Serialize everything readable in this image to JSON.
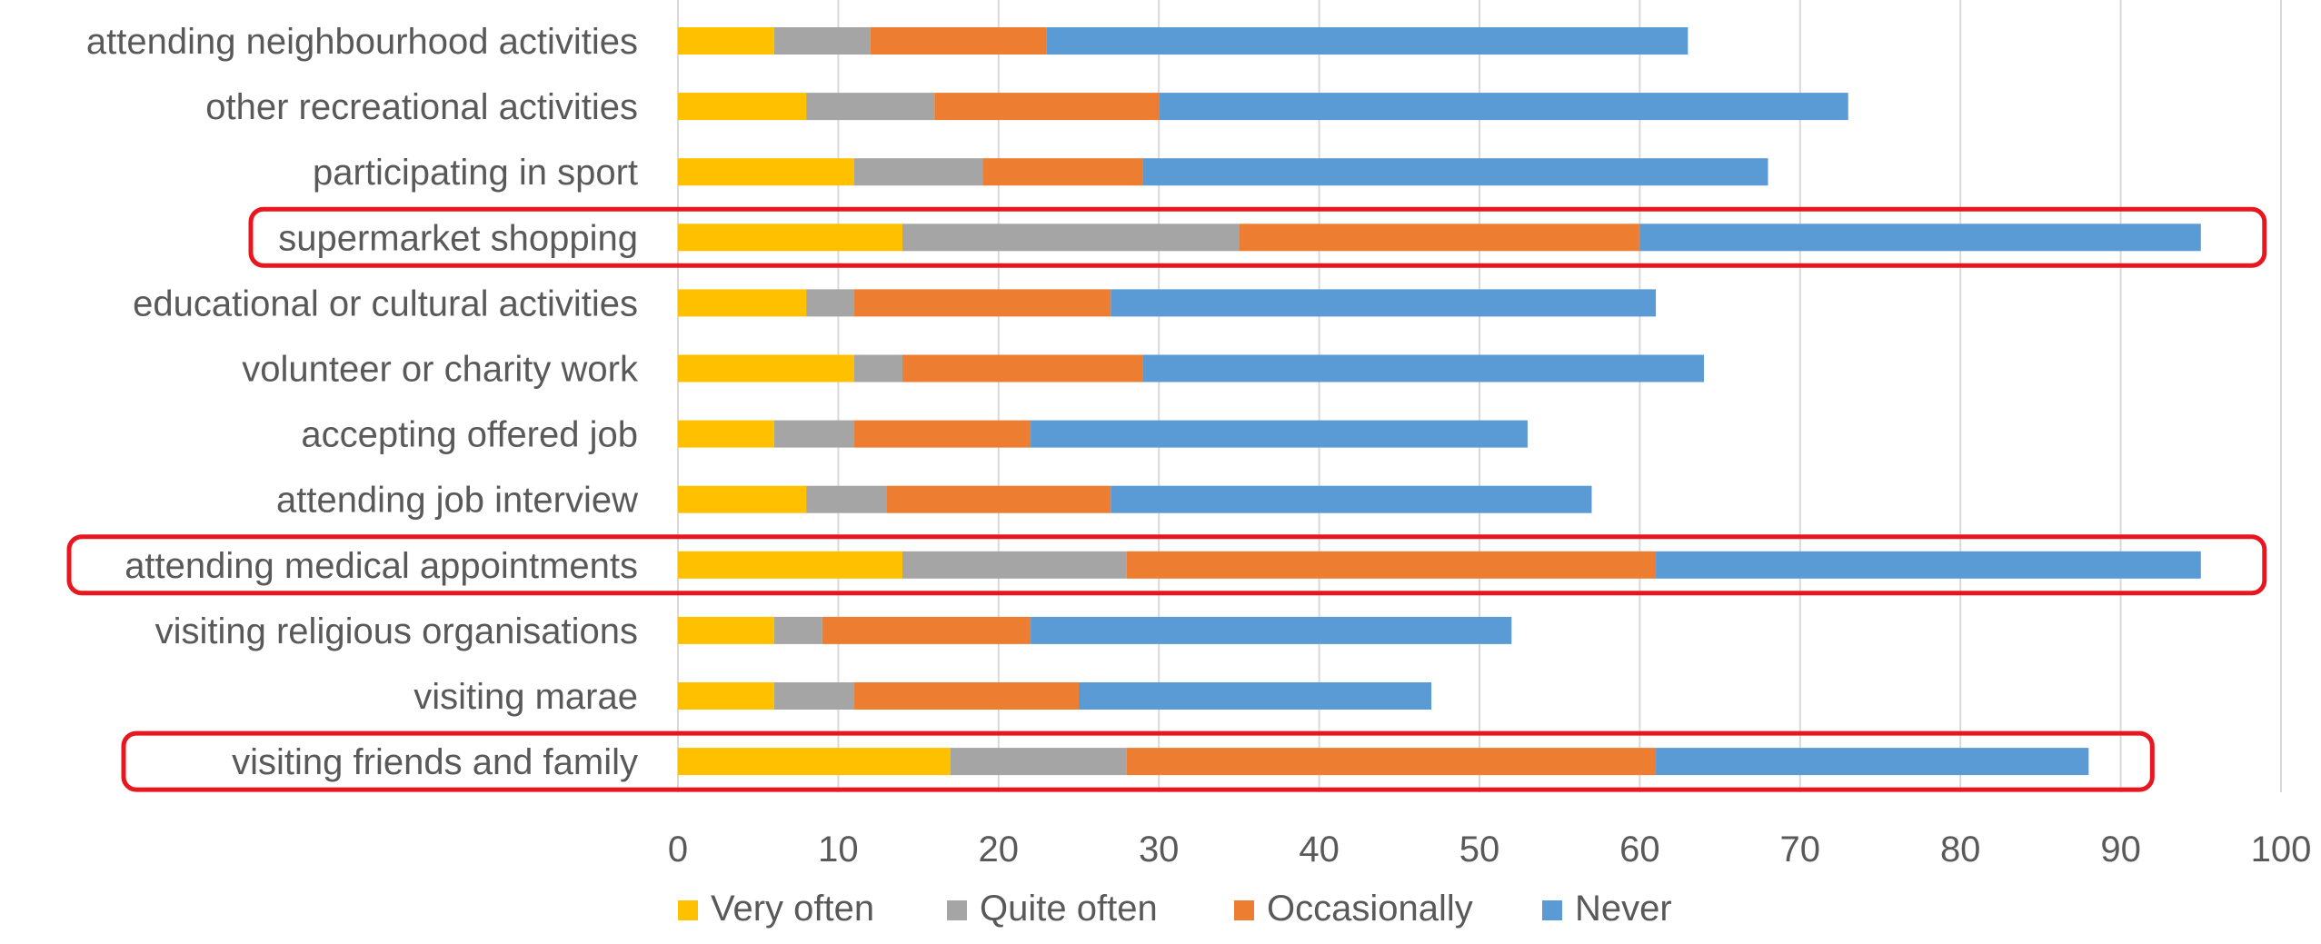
{
  "chart_data": {
    "type": "bar",
    "orientation": "horizontal",
    "stacked": true,
    "title": "",
    "xlabel": "",
    "ylabel": "",
    "xlim": [
      0,
      100
    ],
    "x_ticks": [
      "0",
      "10",
      "20",
      "30",
      "40",
      "50",
      "60",
      "70",
      "80",
      "90",
      "100"
    ],
    "grid": "vertical",
    "legend_position": "bottom",
    "categories": [
      "attending neighbourhood activities",
      "other recreational activities",
      "participating in sport",
      "supermarket shopping",
      "educational or cultural activities",
      "volunteer or charity work",
      "accepting offered job",
      "attending job interview",
      "attending medical appointments",
      "visiting religious organisations",
      "visiting marae",
      "visiting friends and family"
    ],
    "series": [
      {
        "name": "Very often",
        "color": "#FFC000",
        "values": [
          6,
          8,
          11,
          14,
          8,
          11,
          6,
          8,
          14,
          6,
          6,
          17
        ]
      },
      {
        "name": "Quite often",
        "color": "#A5A5A5",
        "values": [
          6,
          8,
          8,
          21,
          3,
          3,
          5,
          5,
          14,
          3,
          5,
          11
        ]
      },
      {
        "name": "Occasionally",
        "color": "#ED7D31",
        "values": [
          11,
          14,
          10,
          25,
          16,
          15,
          11,
          14,
          33,
          13,
          14,
          33
        ]
      },
      {
        "name": "Never",
        "color": "#5B9BD5",
        "values": [
          40,
          43,
          39,
          35,
          34,
          35,
          31,
          30,
          34,
          30,
          22,
          27
        ]
      }
    ],
    "highlighted_categories": [
      "supermarket shopping",
      "attending medical appointments",
      "visiting friends and family"
    ],
    "highlight_color": "#E8171F",
    "label_color": "#595959",
    "grid_color": "#D9D9D9"
  }
}
